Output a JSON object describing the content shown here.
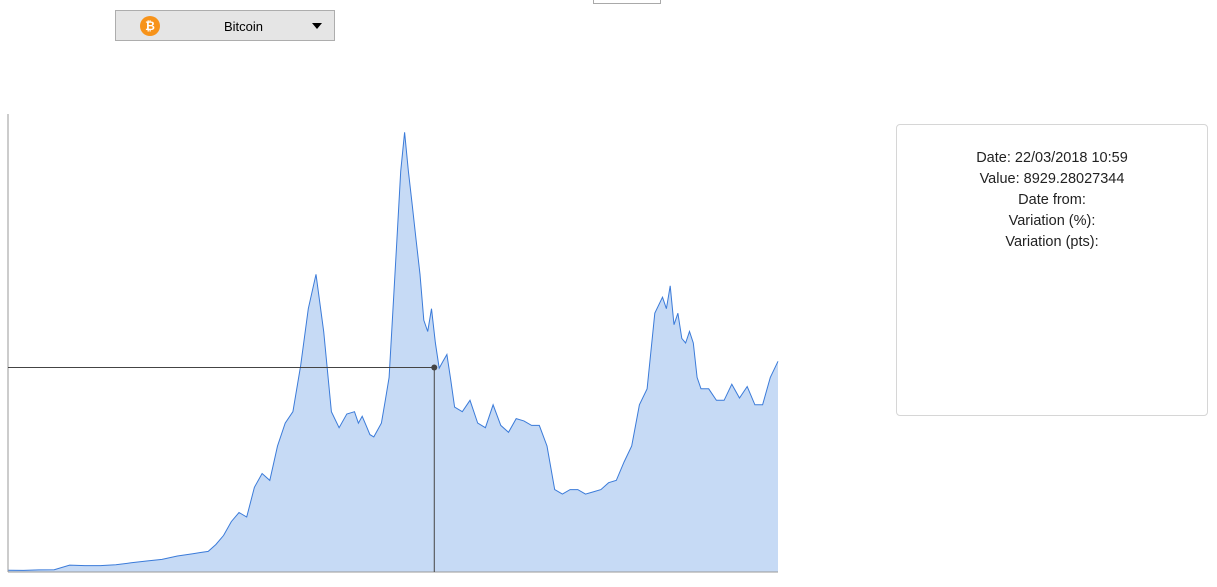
{
  "selector": {
    "selected": "Bitcoin",
    "icon": "bitcoin-icon",
    "icon_glyph": "₿",
    "icon_color": "#f7931a"
  },
  "info": {
    "date_line": "Date: 22/03/2018 10:59",
    "value_line": "Value: 8929.28027344",
    "date_from_line": "Date from:",
    "variation_pct_line": "Variation (%):",
    "variation_pts_line": "Variation (pts):"
  },
  "chart_data": {
    "type": "area",
    "title": "",
    "xlabel": "",
    "ylabel": "",
    "x_unit": "fraction of time span",
    "ylim": [
      0,
      20000
    ],
    "grid": false,
    "colors": {
      "fill": "#c6daf5",
      "line": "#3b7bd9",
      "crosshair": "#444444"
    },
    "cursor": {
      "x": 0.5536,
      "y": 8929.28027344,
      "label": "22/03/2018 10:59"
    },
    "series": [
      {
        "name": "Bitcoin",
        "x": [
          0,
          0.02,
          0.04,
          0.06,
          0.08,
          0.1,
          0.12,
          0.14,
          0.16,
          0.18,
          0.2,
          0.22,
          0.24,
          0.25,
          0.26,
          0.27,
          0.28,
          0.29,
          0.3,
          0.31,
          0.32,
          0.33,
          0.34,
          0.35,
          0.36,
          0.37,
          0.38,
          0.39,
          0.4,
          0.41,
          0.42,
          0.43,
          0.44,
          0.45,
          0.455,
          0.46,
          0.465,
          0.47,
          0.475,
          0.48,
          0.485,
          0.49,
          0.495,
          0.5,
          0.505,
          0.51,
          0.515,
          0.52,
          0.525,
          0.53,
          0.535,
          0.54,
          0.545,
          0.55,
          0.555,
          0.56,
          0.565,
          0.57,
          0.575,
          0.58,
          0.59,
          0.6,
          0.61,
          0.62,
          0.63,
          0.64,
          0.65,
          0.66,
          0.67,
          0.68,
          0.69,
          0.7,
          0.71,
          0.72,
          0.73,
          0.74,
          0.75,
          0.76,
          0.77,
          0.78,
          0.79,
          0.8,
          0.81,
          0.82,
          0.83,
          0.84,
          0.85,
          0.855,
          0.86,
          0.865,
          0.87,
          0.875,
          0.88,
          0.885,
          0.89,
          0.895,
          0.9,
          0.91,
          0.92,
          0.93,
          0.94,
          0.95,
          0.96,
          0.97,
          0.98,
          0.99,
          1.0
        ],
        "values": [
          80,
          70,
          90,
          100,
          300,
          280,
          280,
          320,
          400,
          480,
          550,
          700,
          800,
          850,
          900,
          1200,
          1600,
          2200,
          2600,
          2400,
          3700,
          4300,
          4000,
          5500,
          6500,
          7000,
          9000,
          11500,
          13000,
          10500,
          7000,
          6300,
          6900,
          7000,
          6500,
          6800,
          6400,
          6000,
          5900,
          6200,
          6500,
          7500,
          8500,
          11500,
          14500,
          17500,
          19200,
          17500,
          16000,
          14500,
          13000,
          11000,
          10500,
          11500,
          10000,
          8900,
          9200,
          9500,
          8400,
          7200,
          7000,
          7500,
          6500,
          6300,
          7300,
          6400,
          6100,
          6700,
          6600,
          6400,
          6400,
          5500,
          3600,
          3400,
          3600,
          3600,
          3400,
          3500,
          3600,
          3900,
          4000,
          4800,
          5500,
          7300,
          8000,
          11300,
          12000,
          11500,
          12500,
          10800,
          11300,
          10200,
          10000,
          10500,
          10000,
          8500,
          8000,
          8000,
          7500,
          7500,
          8200,
          7600,
          8100,
          7300,
          7300,
          8500,
          9200
        ]
      }
    ]
  }
}
